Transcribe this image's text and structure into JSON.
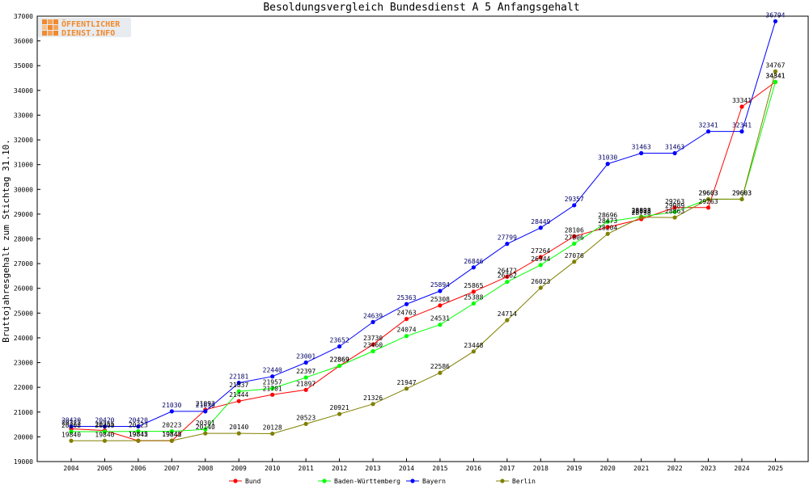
{
  "chart_data": {
    "type": "line",
    "title": "Besoldungsvergleich Bundesdienst A 5 Anfangsgehalt",
    "ylabel": "Bruttojahresgehalt zum Stichtag 31.10.",
    "xlabel": "",
    "categories": [
      "2004",
      "2005",
      "2006",
      "2007",
      "2008",
      "2009",
      "2010",
      "2011",
      "2012",
      "2013",
      "2014",
      "2015",
      "2016",
      "2017",
      "2018",
      "2019",
      "2020",
      "2021",
      "2022",
      "2023",
      "2024",
      "2025"
    ],
    "ylim": [
      19000,
      37000
    ],
    "yticks": [
      19000,
      20000,
      21000,
      22000,
      23000,
      24000,
      25000,
      26000,
      27000,
      28000,
      29000,
      30000,
      31000,
      32000,
      33000,
      34000,
      35000,
      36000,
      37000
    ],
    "grid": false,
    "legend_position": "bottom",
    "series": [
      {
        "name": "Bund",
        "color": "#ff0000",
        "values": [
          20323,
          20255,
          19842,
          19842,
          21093,
          21444,
          21701,
          21897,
          22869,
          23730,
          24763,
          25308,
          25865,
          26472,
          27264,
          28106,
          28473,
          28798,
          29263,
          29263,
          33341,
          34341
        ]
      },
      {
        "name": "Baden-Württemberg",
        "color": "#00ff00",
        "values": [
          20208,
          20208,
          20223,
          20223,
          20301,
          21837,
          21957,
          22397,
          22869,
          23460,
          24074,
          24531,
          25388,
          26262,
          26944,
          27806,
          28696,
          28898,
          29089,
          29603,
          29603,
          34341
        ]
      },
      {
        "name": "Bayern",
        "color": "#0000ff",
        "values": [
          20420,
          20420,
          20420,
          21030,
          21030,
          22181,
          22440,
          23001,
          23652,
          24639,
          25363,
          25894,
          26846,
          27799,
          28449,
          29357,
          31030,
          31463,
          31463,
          32341,
          32341,
          36794
        ]
      },
      {
        "name": "Berlin",
        "color": "#808000",
        "values": [
          19840,
          19840,
          19845,
          19845,
          20140,
          20140,
          20128,
          20523,
          20921,
          21326,
          21947,
          22586,
          23448,
          24714,
          26023,
          27076,
          28204,
          28873,
          28863,
          29603,
          29603,
          34767
        ]
      }
    ],
    "data_labels": {
      "Bund": [
        "20323",
        "20255",
        "19842",
        "19842",
        "21093",
        "21444",
        "21701",
        "21897",
        "22869",
        "23730",
        "24763",
        "25308",
        "25865",
        "26472",
        "27264",
        "28106",
        "28473",
        "28798",
        "29263",
        "29263",
        "33341",
        "34341"
      ],
      "Baden-Württemberg": [
        "20208",
        "20208",
        "20223",
        "20223",
        "20301",
        "21837",
        "21957",
        "22397",
        "22869",
        "23460",
        "24074",
        "24531",
        "25388",
        "26262",
        "26944",
        "27806",
        "28696",
        "28898",
        "29089",
        "29603",
        "29603",
        "34341"
      ],
      "Bayern": [
        "20420",
        "20420",
        "20420",
        "21030",
        "21030",
        "22181",
        "22440",
        "23001",
        "23652",
        "24639",
        "25363",
        "25894",
        "26846",
        "27799",
        "28449",
        "29357",
        "31030",
        "31463",
        "31463",
        "32341",
        "32341",
        "36794"
      ],
      "Berlin": [
        "19840",
        "19840",
        "19845",
        "19845",
        "20140",
        "20140",
        "20128",
        "20523",
        "20921",
        "21326",
        "21947",
        "22586",
        "23448",
        "24714",
        "26023",
        "27076",
        "28204",
        "28873",
        "28863",
        "29603",
        "29603",
        "34767"
      ]
    }
  },
  "branding": {
    "logo_line1": "ÖFFENTLICHER",
    "logo_line2": "DIENST.INFO",
    "logo_color": "#f08a2c",
    "logo_icon": "grid-squares-icon"
  }
}
